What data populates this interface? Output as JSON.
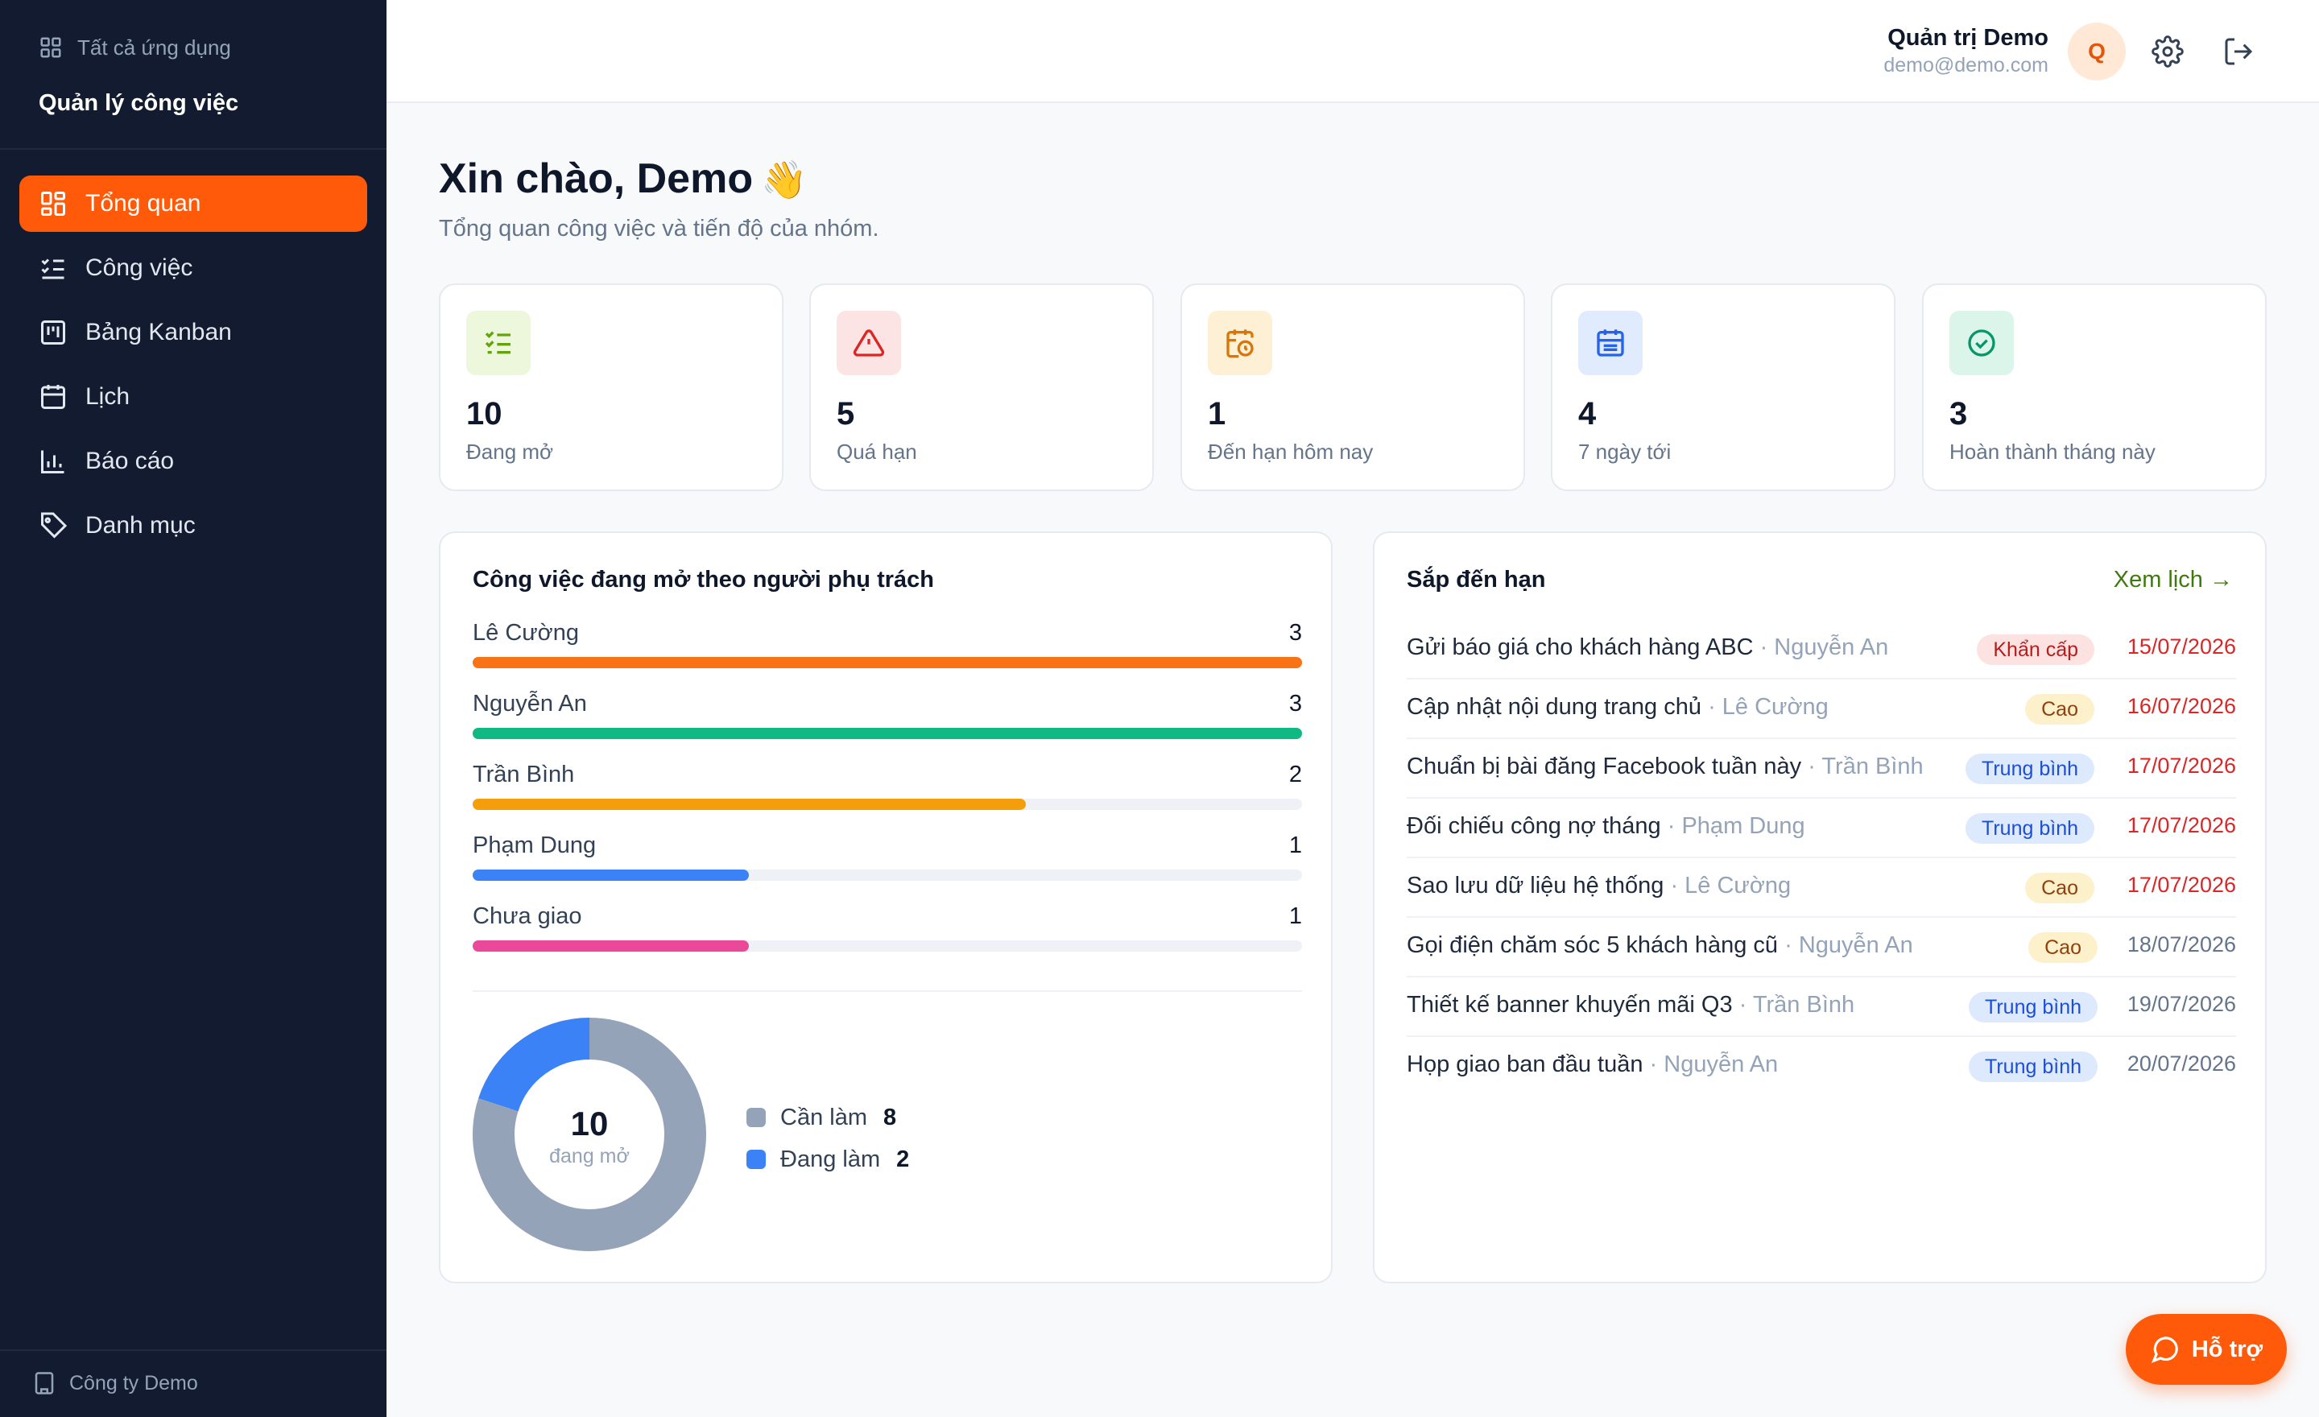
{
  "sidebar": {
    "all_apps": "Tất cả ứng dụng",
    "app_title": "Quản lý công việc",
    "items": [
      {
        "label": "Tổng quan",
        "icon": "dashboard-icon"
      },
      {
        "label": "Công việc",
        "icon": "checklist-icon"
      },
      {
        "label": "Bảng Kanban",
        "icon": "kanban-icon"
      },
      {
        "label": "Lịch",
        "icon": "calendar-icon"
      },
      {
        "label": "Báo cáo",
        "icon": "chart-icon"
      },
      {
        "label": "Danh mục",
        "icon": "tag-icon"
      }
    ],
    "company": "Công ty Demo"
  },
  "header": {
    "user_name": "Quản trị Demo",
    "user_email": "demo@demo.com",
    "avatar_letter": "Q"
  },
  "main": {
    "greeting": "Xin chào, Demo",
    "greeting_emoji": "👋",
    "subtitle": "Tổng quan công việc và tiến độ của nhóm."
  },
  "stats": [
    {
      "value": "10",
      "label": "Đang mở",
      "color": "#65a30d",
      "bg": "#ecf7dc"
    },
    {
      "value": "5",
      "label": "Quá hạn",
      "color": "#dc2626",
      "bg": "#fde4e4"
    },
    {
      "value": "1",
      "label": "Đến hạn hôm nay",
      "color": "#d97706",
      "bg": "#fdf0d5"
    },
    {
      "value": "4",
      "label": "7 ngày tới",
      "color": "#2563eb",
      "bg": "#e0ebfd"
    },
    {
      "value": "3",
      "label": "Hoàn thành tháng này",
      "color": "#059669",
      "bg": "#dcf5ea"
    }
  ],
  "assignee_panel": {
    "title": "Công việc đang mở theo người phụ trách",
    "max": 3,
    "rows": [
      {
        "name": "Lê Cường",
        "count": 3,
        "color": "#f97316"
      },
      {
        "name": "Nguyễn An",
        "count": 3,
        "color": "#10b981"
      },
      {
        "name": "Trần Bình",
        "count": 2,
        "color": "#f59e0b"
      },
      {
        "name": "Phạm Dung",
        "count": 1,
        "color": "#3b82f6"
      },
      {
        "name": "Chưa giao",
        "count": 1,
        "color": "#ec4899"
      }
    ],
    "donut": {
      "total": "10",
      "caption": "đang mở",
      "segments": [
        {
          "label": "Cần làm",
          "value": 8,
          "color": "#94a3b8"
        },
        {
          "label": "Đang làm",
          "value": 2,
          "color": "#3b82f6"
        }
      ]
    }
  },
  "due_panel": {
    "title": "Sắp đến hạn",
    "view_link": "Xem lịch →",
    "rows": [
      {
        "task": "Gửi báo giá cho khách hàng ABC",
        "owner": "· Nguyễn An",
        "priority": "Khẩn cấp",
        "date": "15/07/2026",
        "late": true
      },
      {
        "task": "Cập nhật nội dung trang chủ",
        "owner": "· Lê Cường",
        "priority": "Cao",
        "date": "16/07/2026",
        "late": true
      },
      {
        "task": "Chuẩn bị bài đăng Facebook tuần này",
        "owner": "· Trần Bình",
        "priority": "Trung bình",
        "date": "17/07/2026",
        "late": true
      },
      {
        "task": "Đối chiếu công nợ tháng",
        "owner": "· Phạm Dung",
        "priority": "Trung bình",
        "date": "17/07/2026",
        "late": true
      },
      {
        "task": "Sao lưu dữ liệu hệ thống",
        "owner": "· Lê Cường",
        "priority": "Cao",
        "date": "17/07/2026",
        "late": true
      },
      {
        "task": "Gọi điện chăm sóc 5 khách hàng cũ",
        "owner": "· Nguyễn An",
        "priority": "Cao",
        "date": "18/07/2026",
        "late": false
      },
      {
        "task": "Thiết kế banner khuyến mãi Q3",
        "owner": "· Trần Bình",
        "priority": "Trung bình",
        "date": "19/07/2026",
        "late": false
      },
      {
        "task": "Họp giao ban đầu tuần",
        "owner": "· Nguyễn An",
        "priority": "Trung bình",
        "date": "20/07/2026",
        "late": false
      }
    ],
    "priority_styles": {
      "Khẩn cấp": {
        "bg": "#fde2e2",
        "color": "#b91c1c"
      },
      "Cao": {
        "bg": "#fdf1cc",
        "color": "#92400e"
      },
      "Trung bình": {
        "bg": "#dde9fc",
        "color": "#1d4ed8"
      }
    }
  },
  "help_button": "Hỗ trợ"
}
